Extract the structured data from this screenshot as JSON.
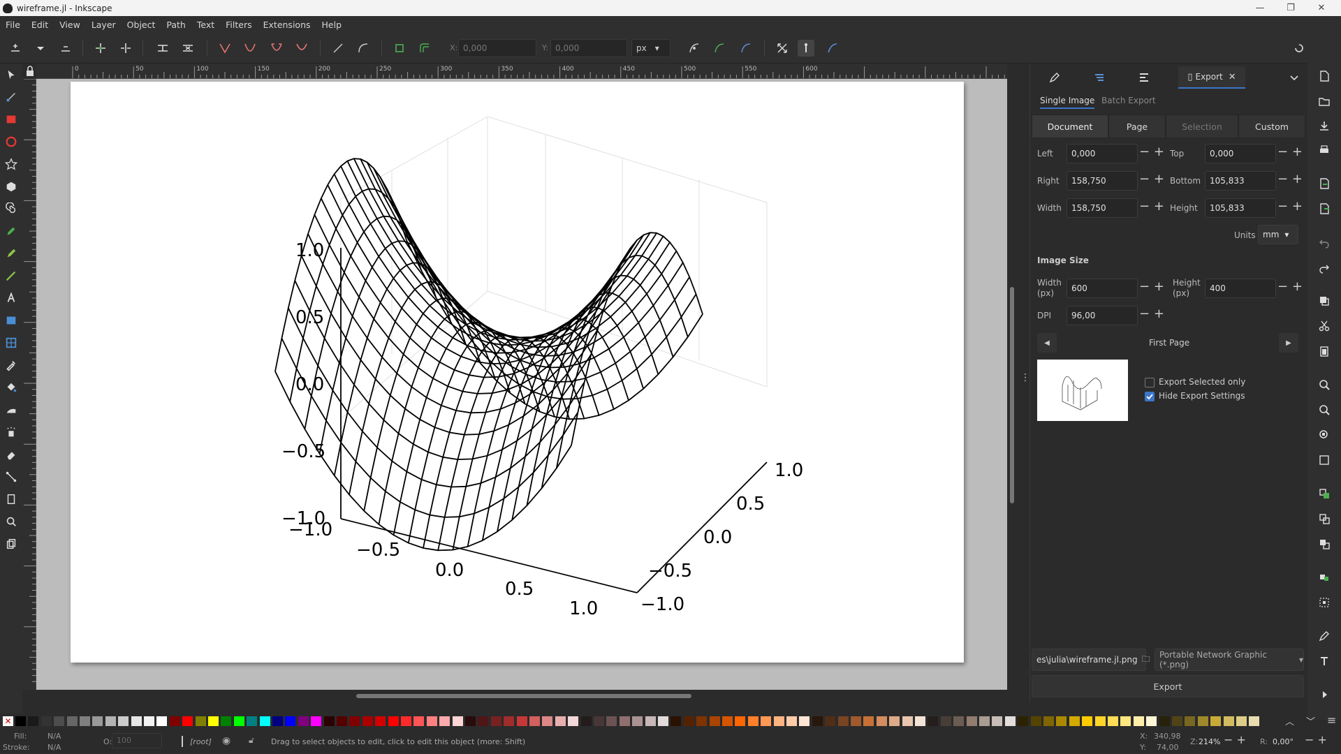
{
  "window": {
    "title": "wireframe.jl - Inkscape",
    "controls": [
      "—",
      "❐",
      "✕"
    ]
  },
  "menu": [
    "File",
    "Edit",
    "View",
    "Layer",
    "Object",
    "Path",
    "Text",
    "Filters",
    "Extensions",
    "Help"
  ],
  "toolbar": {
    "x_label": "X:",
    "x_value": "0,000",
    "y_label": "Y:",
    "y_value": "0,000",
    "unit": "px"
  },
  "ruler_ticks": [
    "0",
    "50",
    "100",
    "150",
    "200",
    "250",
    "300",
    "350",
    "400",
    "450",
    "500",
    "550",
    "600"
  ],
  "chart": {
    "z_ticks": [
      "1.0",
      "0.5",
      "0.0",
      "−0.5",
      "−1.0"
    ],
    "x_ticks": [
      "−1.0",
      "−0.5",
      "0.0",
      "0.5",
      "1.0"
    ],
    "y_ticks": [
      "1.0",
      "0.5",
      "0.0",
      "−0.5",
      "−1.0"
    ]
  },
  "dock": {
    "active_tab": "Export",
    "subtabs": [
      "Single Image",
      "Batch Export"
    ],
    "segments": [
      "Document",
      "Page",
      "Selection",
      "Custom"
    ],
    "area": {
      "left_label": "Left",
      "left": "0,000",
      "top_label": "Top",
      "top": "0,000",
      "right_label": "Right",
      "right": "158,750",
      "bottom_label": "Bottom",
      "bottom": "105,833",
      "width_label": "Width",
      "width": "158,750",
      "height_label": "Height",
      "height": "105,833",
      "units_label": "Units",
      "units": "mm"
    },
    "image_size": {
      "heading": "Image Size",
      "width_label": "Width",
      "width_unit": "(px)",
      "width": "600",
      "height_label": "Height",
      "height_unit": "(px)",
      "height": "400",
      "dpi_label": "DPI",
      "dpi": "96,00"
    },
    "page_nav": "First Page",
    "export_selected_only": "Export Selected only",
    "hide_export_settings": "Hide Export Settings",
    "filename": "es\\julia\\wireframe.jl.png",
    "filetype": "Portable Network Graphic (*.png)",
    "export_button": "Export"
  },
  "palette": [
    "#000000",
    "#1a1a1a",
    "#333333",
    "#4d4d4d",
    "#666666",
    "#808080",
    "#999999",
    "#b3b3b3",
    "#cccccc",
    "#e6e6e6",
    "#f2f2f2",
    "#ffffff",
    "#800000",
    "#ff0000",
    "#808000",
    "#ffff00",
    "#008000",
    "#00ff00",
    "#008080",
    "#00ffff",
    "#000080",
    "#0000ff",
    "#800080",
    "#ff00ff",
    "#2b0000",
    "#550000",
    "#800000",
    "#aa0000",
    "#d40000",
    "#ff0000",
    "#ff2a2a",
    "#ff5555",
    "#ff8080",
    "#ffaaaa",
    "#ffd5d5",
    "#280b0b",
    "#501616",
    "#782121",
    "#a02c2c",
    "#c83737",
    "#d35f5f",
    "#de8787",
    "#e9afaf",
    "#f4d7d7",
    "#241c1c",
    "#483737",
    "#6c5353",
    "#916f6f",
    "#ac9393",
    "#c8b7b7",
    "#e3dbdb",
    "#2b1100",
    "#552200",
    "#803300",
    "#aa4400",
    "#d45500",
    "#ff6600",
    "#ff7f2a",
    "#ff9955",
    "#ffb380",
    "#ffccaa",
    "#ffe6d5",
    "#28170b",
    "#502d16",
    "#784421",
    "#a05a2c",
    "#c87137",
    "#d38d5f",
    "#deaa87",
    "#e9c6af",
    "#f4e3d7",
    "#241f1c",
    "#483e37",
    "#6c5d53",
    "#917c6f",
    "#ac9d93",
    "#c8beb7",
    "#e3dedb",
    "#2b2200",
    "#554400",
    "#806600",
    "#aa8800",
    "#d4aa00",
    "#ffcc00",
    "#ffd42a",
    "#ffdd55",
    "#ffe680",
    "#ffeeaa",
    "#fff6d5",
    "#28220b",
    "#504416",
    "#786721",
    "#a0892c",
    "#c8ab37",
    "#d3bc5f",
    "#decd87",
    "#e9ddaf"
  ],
  "status": {
    "fill_label": "Fill:",
    "fill_value": "N/A",
    "stroke_label": "Stroke:",
    "stroke_value": "N/A",
    "opacity_label": "O:",
    "opacity_value": "100",
    "layer": "[root]",
    "message": "Drag to select objects to edit, click to edit this object (more: Shift)",
    "x_label": "X:",
    "x": "340,98",
    "y_label": "Y:",
    "y": "74,00",
    "zoom_label": "Z:",
    "zoom": "214%",
    "rotate_label": "R:",
    "rotate": "0,00°"
  }
}
